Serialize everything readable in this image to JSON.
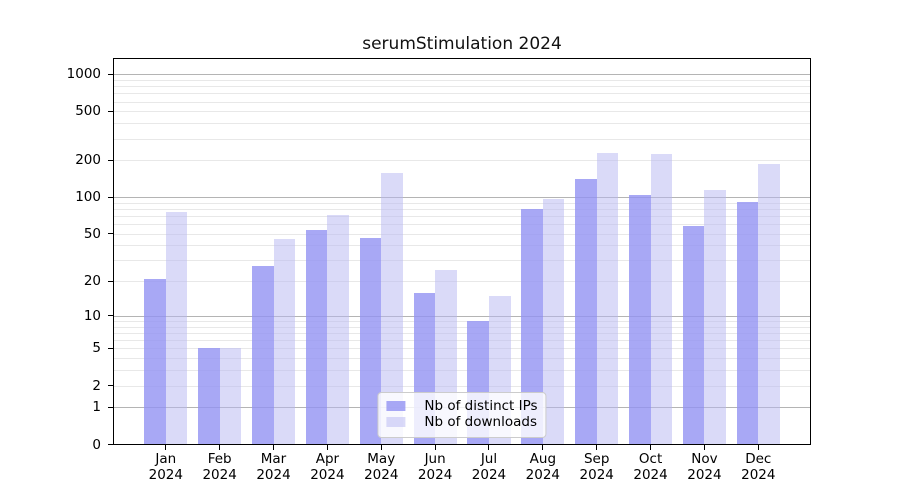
{
  "title": "serumStimulation 2024",
  "chart_data": {
    "type": "bar",
    "title": "serumStimulation 2024",
    "x_months": [
      "Jan",
      "Feb",
      "Mar",
      "Apr",
      "May",
      "Jun",
      "Jul",
      "Aug",
      "Sep",
      "Oct",
      "Nov",
      "Dec"
    ],
    "x_year": "2024",
    "series": [
      {
        "name": "Nb of distinct IPs",
        "color": "rgba(146,146,243,0.8)",
        "values": [
          21,
          5,
          27,
          54,
          46,
          16,
          9,
          80,
          140,
          105,
          58,
          92
        ]
      },
      {
        "name": "Nb of downloads",
        "color": "rgba(181,181,241,0.5)",
        "values": [
          75,
          5,
          45,
          72,
          158,
          25,
          15,
          97,
          230,
          225,
          114,
          187
        ]
      }
    ],
    "y_axis": {
      "ticks": [
        1000,
        500,
        200,
        100,
        50,
        20,
        10,
        5,
        2,
        1,
        0
      ],
      "scale": "log10(value+1)",
      "range": [
        0,
        1320
      ]
    },
    "grid": {
      "enabled": true,
      "major_values": [
        1,
        10,
        100,
        1000
      ],
      "minor_rule": "2-9 per decade",
      "major_color": "#b4b4b4",
      "minor_color": "#e8e8e8"
    },
    "legend": {
      "position": "lower center",
      "labels": [
        "Nb of distinct IPs",
        "Nb of downloads"
      ]
    }
  },
  "colors": {
    "background": "#ffffff",
    "axis": "#000000",
    "text": "#000000",
    "bar_distinct_ips": "rgba(146,146,243,0.8)",
    "bar_downloads": "rgba(181,181,241,0.5)",
    "legend_border": "#cccccc",
    "legend_background": "rgba(255,255,255,0.8)"
  }
}
